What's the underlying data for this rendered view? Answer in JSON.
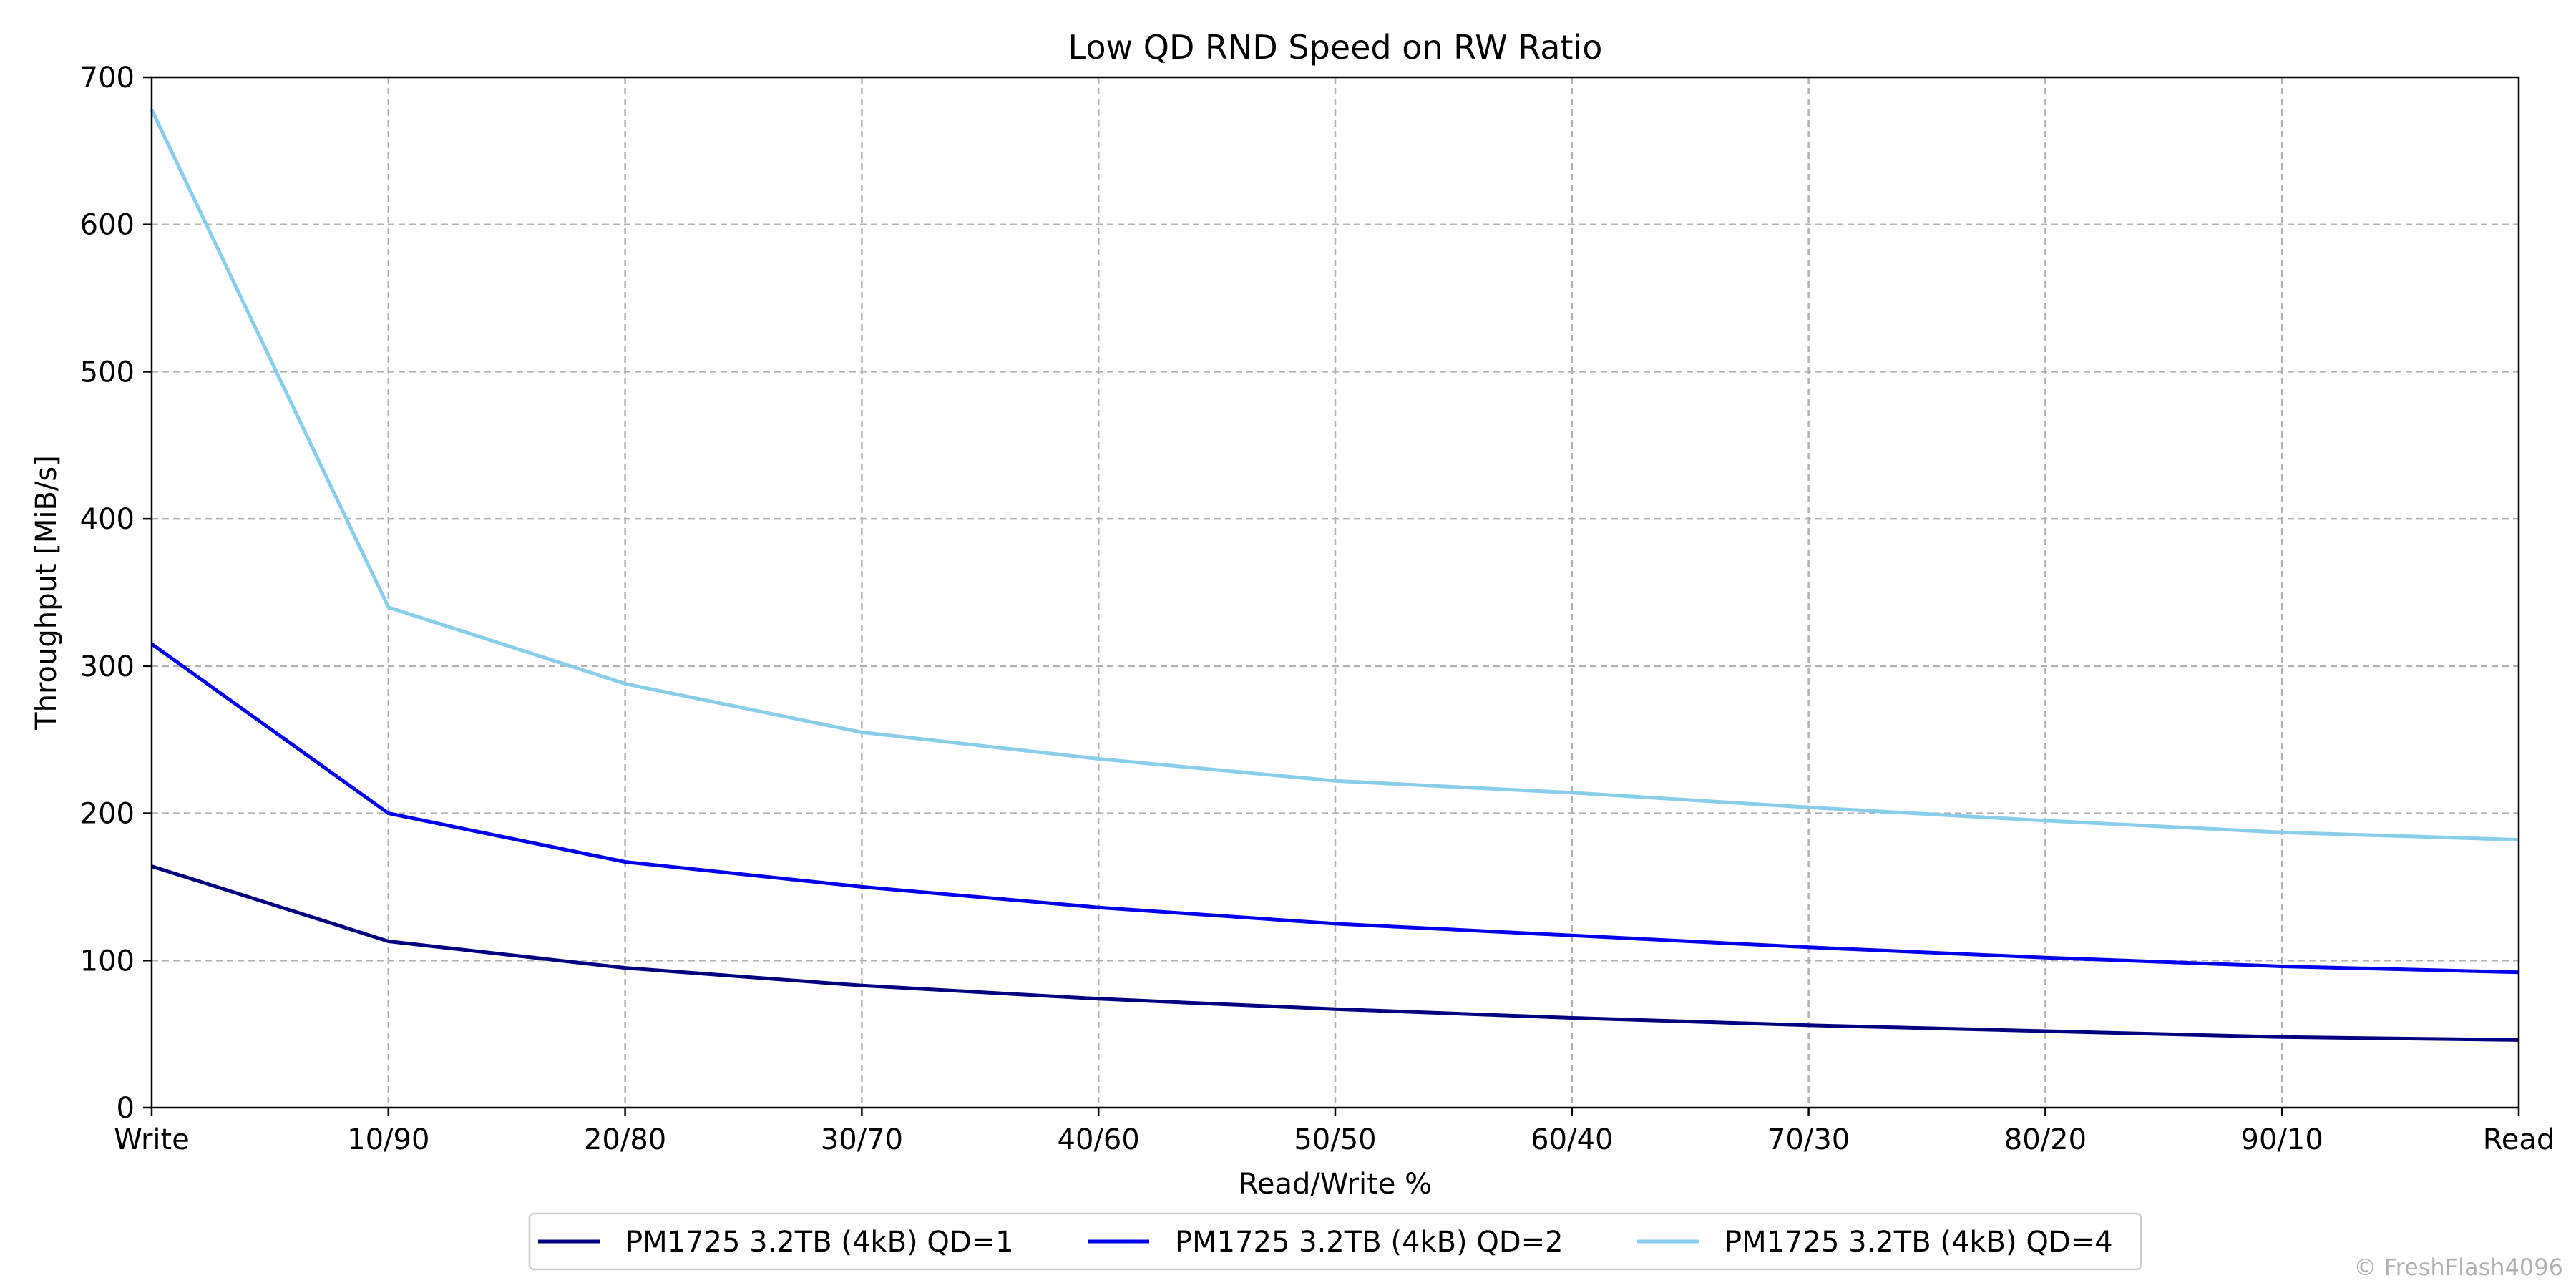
{
  "chart_data": {
    "type": "line",
    "title": "Low QD RND Speed on RW Ratio",
    "xlabel": "Read/Write %",
    "ylabel": "Throughput [MiB/s]",
    "categories": [
      "Write",
      "10/90",
      "20/80",
      "30/70",
      "40/60",
      "50/50",
      "60/40",
      "70/30",
      "80/20",
      "90/10",
      "Read"
    ],
    "ylim": [
      0,
      700
    ],
    "yticks": [
      0,
      100,
      200,
      300,
      400,
      500,
      600,
      700
    ],
    "grid": true,
    "legend_position": "bottom-center",
    "series": [
      {
        "name": "PM1725 3.2TB (4kB) QD=1",
        "color": "#000080",
        "values": [
          164,
          113,
          95,
          83,
          74,
          67,
          61,
          56,
          52,
          48,
          46
        ]
      },
      {
        "name": "PM1725 3.2TB (4kB) QD=2",
        "color": "#0000ee",
        "values": [
          315,
          200,
          167,
          150,
          136,
          125,
          117,
          109,
          102,
          96,
          92
        ]
      },
      {
        "name": "PM1725 3.2TB (4kB) QD=4",
        "color": "#87ceeb",
        "values": [
          678,
          340,
          288,
          255,
          237,
          222,
          214,
          204,
          195,
          187,
          182
        ]
      }
    ]
  },
  "watermark": "© FreshFlash4096"
}
